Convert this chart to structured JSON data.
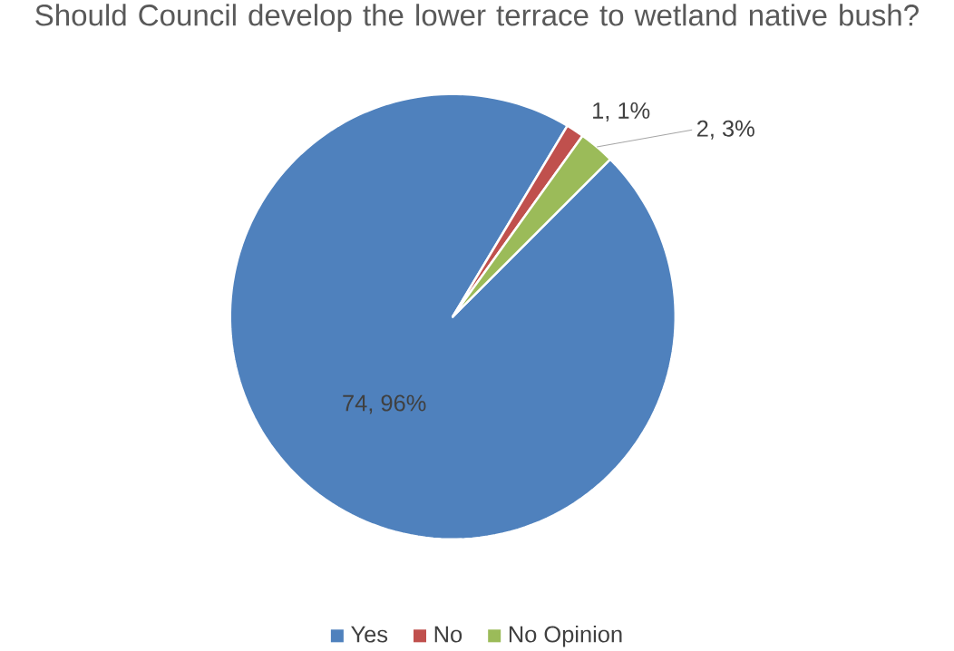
{
  "chart_data": {
    "type": "pie",
    "title": "Should Council develop the lower terrace to wetland native bush?",
    "categories": [
      "Yes",
      "No",
      "No Opinion"
    ],
    "values": [
      74,
      1,
      2
    ],
    "colors": [
      "#4f81bd",
      "#c0504d",
      "#9bbb59"
    ],
    "value_labels": [
      "74, 96%",
      "1, 1%",
      "2, 3%"
    ],
    "legend": "bottom"
  }
}
